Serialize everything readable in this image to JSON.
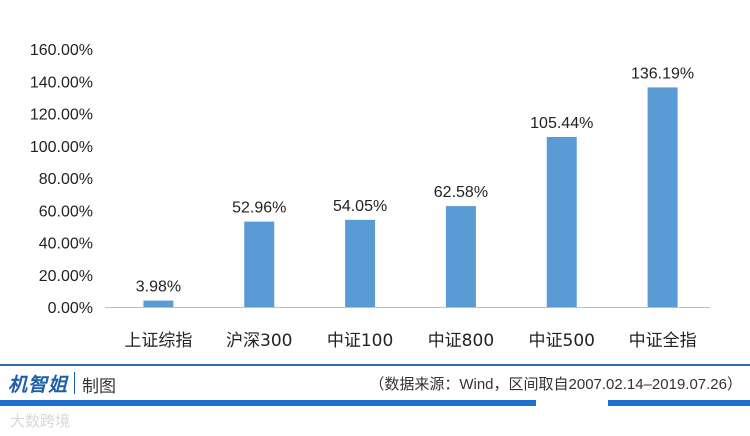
{
  "chart_data": {
    "type": "bar",
    "categories": [
      "上证综指",
      "沪深300",
      "中证100",
      "中证800",
      "中证500",
      "中证全指"
    ],
    "values": [
      3.98,
      52.96,
      54.05,
      62.58,
      105.44,
      136.19
    ],
    "data_labels": [
      "3.98%",
      "52.96%",
      "54.05%",
      "62.58%",
      "105.44%",
      "136.19%"
    ],
    "ylim": [
      0,
      160
    ],
    "yticks": [
      0,
      20,
      40,
      60,
      80,
      100,
      120,
      140,
      160
    ],
    "ytick_labels": [
      "0.00%",
      "20.00%",
      "40.00%",
      "60.00%",
      "80.00%",
      "100.00%",
      "120.00%",
      "140.00%",
      "160.00%"
    ],
    "grid": false,
    "bar_color": "#5b9bd5"
  },
  "footer": {
    "brand": "机智姐",
    "brand_suffix": "制图",
    "source": "（数据来源：Wind，区间取自2007.02.14–2019.07.26）",
    "watermark": "大数跨境",
    "brand_color": "#1f5fa8",
    "bar_color": "#1f6fd0"
  }
}
